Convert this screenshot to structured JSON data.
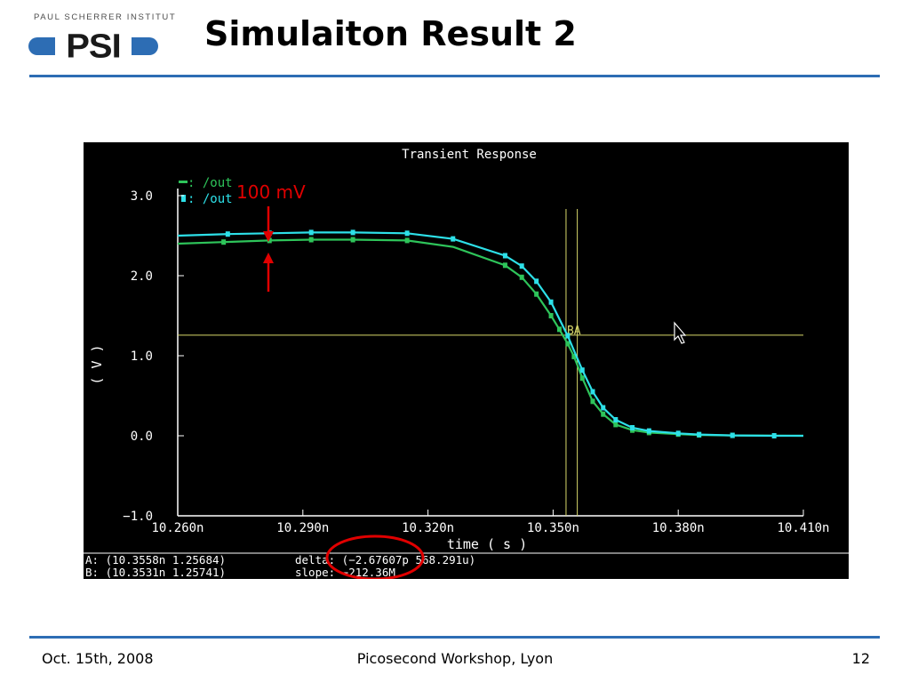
{
  "header": {
    "institute": "PAUL SCHERRER INSTITUT",
    "logo_mark": "PSI",
    "title": "Simulaiton Result 2"
  },
  "footer": {
    "date": "Oct. 15th, 2008",
    "event": "Picosecond Workshop, Lyon",
    "page": "12"
  },
  "annotation": {
    "label": "100 mV",
    "arrow_color": "#e00000",
    "circle_color": "#e00000"
  },
  "chart_data": {
    "type": "line",
    "title": "Transient Response",
    "xlabel": "time ( s )",
    "ylabel": "( V )",
    "xlim": [
      10.26,
      10.41
    ],
    "ylim": [
      -1.0,
      3.0
    ],
    "x_unit": "n",
    "x_ticks": [
      10.26,
      10.29,
      10.32,
      10.35,
      10.38,
      10.41
    ],
    "x_tick_labels": [
      "10.260n",
      "10.290n",
      "10.320n",
      "10.350n",
      "10.380n",
      "10.410n"
    ],
    "y_ticks": [
      -1.0,
      0.0,
      1.0,
      2.0,
      3.0
    ],
    "y_tick_labels": [
      "−1.0",
      "0.0",
      "1.0",
      "2.0",
      "3.0"
    ],
    "grid": false,
    "legend_placement": "top-left",
    "background": "#000000",
    "axis_color": "#ffffff",
    "series": [
      {
        "name": ": /out",
        "color": "#2ec45a",
        "marker_x": [
          10.271,
          10.282,
          10.292,
          10.302,
          10.315,
          10.3385,
          10.3425,
          10.346,
          10.3495,
          10.3515,
          10.3535,
          10.355,
          10.357,
          10.3595,
          10.362,
          10.365,
          10.369,
          10.373,
          10.38,
          10.385,
          10.393
        ],
        "x": [
          10.26,
          10.271,
          10.282,
          10.292,
          10.302,
          10.315,
          10.326,
          10.3385,
          10.3425,
          10.346,
          10.3495,
          10.3515,
          10.3535,
          10.355,
          10.357,
          10.3595,
          10.362,
          10.365,
          10.369,
          10.373,
          10.38,
          10.385,
          10.393,
          10.41
        ],
        "y": [
          2.4,
          2.42,
          2.44,
          2.45,
          2.45,
          2.44,
          2.36,
          2.13,
          1.98,
          1.77,
          1.5,
          1.33,
          1.15,
          0.99,
          0.72,
          0.43,
          0.27,
          0.14,
          0.07,
          0.04,
          0.02,
          0.01,
          0.005,
          0.0
        ]
      },
      {
        "name": ": /out",
        "color": "#2de0e8",
        "marker_x": [
          10.272,
          10.282,
          10.292,
          10.302,
          10.315,
          10.326,
          10.3385,
          10.3425,
          10.346,
          10.3495,
          10.3535,
          10.357,
          10.3595,
          10.362,
          10.365,
          10.369,
          10.373,
          10.38,
          10.385,
          10.393,
          10.403
        ],
        "x": [
          10.26,
          10.272,
          10.282,
          10.292,
          10.302,
          10.315,
          10.326,
          10.3385,
          10.3425,
          10.346,
          10.3495,
          10.3535,
          10.357,
          10.3595,
          10.362,
          10.365,
          10.369,
          10.373,
          10.38,
          10.385,
          10.393,
          10.403,
          10.41
        ],
        "y": [
          2.5,
          2.52,
          2.53,
          2.54,
          2.54,
          2.53,
          2.46,
          2.25,
          2.12,
          1.93,
          1.67,
          1.25,
          0.82,
          0.55,
          0.35,
          0.2,
          0.1,
          0.06,
          0.03,
          0.015,
          0.005,
          0.0,
          0.0
        ]
      }
    ],
    "markers": {
      "hline_y": 1.2568,
      "vline_x": [
        10.3531,
        10.3558
      ],
      "color": "#d8d86a",
      "label": "BA"
    },
    "readout": {
      "line_a": "A: (10.3558n 1.25684)",
      "line_b": "B: (10.3531n 1.25741)",
      "delta": "delta: (−2.67607p 568.291u)",
      "slope": "slope:   −212.36M"
    }
  }
}
